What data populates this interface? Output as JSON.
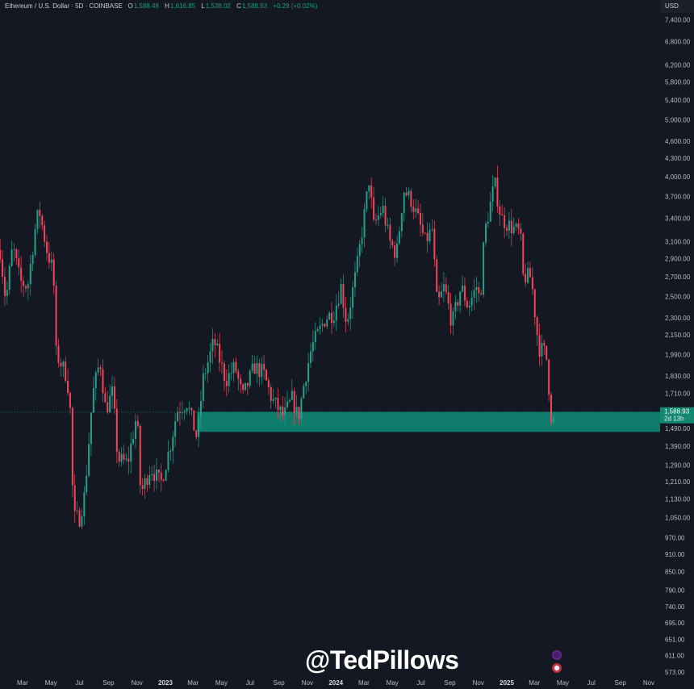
{
  "header": {
    "symbol": "Ethereum / U.S. Dollar · 5D · COINBASE",
    "o_label": "O",
    "o": "1,588.48",
    "h_label": "H",
    "h": "1,616.85",
    "l_label": "L",
    "l": "1,538.02",
    "c_label": "C",
    "c": "1,588.93",
    "change": "+0.29 (+0.02%)",
    "currency": "USD"
  },
  "watermark": "@TedPillows",
  "icons": [
    "lightning-icon",
    "us-flag-icon"
  ],
  "chart_data": {
    "type": "candlestick",
    "title": "Ethereum / U.S. Dollar · 5D · COINBASE",
    "y_scale": "log",
    "ylim": [
      560,
      7600
    ],
    "y_ticks": [
      "7,400.00",
      "6,800.00",
      "6,200.00",
      "5,800.00",
      "5,400.00",
      "5,000.00",
      "4,600.00",
      "4,300.00",
      "4,000.00",
      "3,700.00",
      "3,400.00",
      "3,100.00",
      "2,900.00",
      "2,700.00",
      "2,500.00",
      "2,300.00",
      "2,150.00",
      "1,990.00",
      "1,830.00",
      "1,710.00",
      "1,490.00",
      "1,390.00",
      "1,290.00",
      "1,210.00",
      "1,130.00",
      "1,050.00",
      "970.00",
      "910.00",
      "850.00",
      "790.00",
      "740.00",
      "695.00",
      "651.00",
      "611.00",
      "573.00"
    ],
    "x_ticks": [
      {
        "label": "Mar",
        "date": "2022-03-01"
      },
      {
        "label": "May",
        "date": "2022-05-01"
      },
      {
        "label": "Jul",
        "date": "2022-07-01"
      },
      {
        "label": "Sep",
        "date": "2022-09-01"
      },
      {
        "label": "Nov",
        "date": "2022-11-01"
      },
      {
        "label": "2023",
        "date": "2023-01-01",
        "bold": true
      },
      {
        "label": "Mar",
        "date": "2023-03-01"
      },
      {
        "label": "May",
        "date": "2023-05-01"
      },
      {
        "label": "Jul",
        "date": "2023-07-01"
      },
      {
        "label": "Sep",
        "date": "2023-09-01"
      },
      {
        "label": "Nov",
        "date": "2023-11-01"
      },
      {
        "label": "2024",
        "date": "2024-01-01",
        "bold": true
      },
      {
        "label": "Mar",
        "date": "2024-03-01"
      },
      {
        "label": "May",
        "date": "2024-05-01"
      },
      {
        "label": "Jul",
        "date": "2024-07-01"
      },
      {
        "label": "Sep",
        "date": "2024-09-01"
      },
      {
        "label": "Nov",
        "date": "2024-11-01"
      },
      {
        "label": "2025",
        "date": "2025-01-01",
        "bold": true
      },
      {
        "label": "Mar",
        "date": "2025-03-01"
      },
      {
        "label": "May",
        "date": "2025-05-01"
      },
      {
        "label": "Jul",
        "date": "2025-07-01"
      },
      {
        "label": "Sep",
        "date": "2025-09-01"
      },
      {
        "label": "Nov",
        "date": "2025-11-01"
      }
    ],
    "close_path": [
      [
        "2022-01-12",
        3000
      ],
      [
        "2022-01-24",
        2450
      ],
      [
        "2022-02-08",
        3050
      ],
      [
        "2022-02-24",
        2650
      ],
      [
        "2022-03-12",
        2600
      ],
      [
        "2022-03-30",
        3350
      ],
      [
        "2022-04-06",
        3500
      ],
      [
        "2022-04-22",
        3000
      ],
      [
        "2022-05-06",
        2750
      ],
      [
        "2022-05-12",
        2000
      ],
      [
        "2022-06-01",
        1850
      ],
      [
        "2022-06-10",
        1700
      ],
      [
        "2022-06-18",
        1050
      ],
      [
        "2022-07-01",
        1050
      ],
      [
        "2022-07-12",
        1150
      ],
      [
        "2022-07-29",
        1700
      ],
      [
        "2022-08-14",
        1950
      ],
      [
        "2022-08-26",
        1600
      ],
      [
        "2022-09-10",
        1720
      ],
      [
        "2022-09-21",
        1320
      ],
      [
        "2022-10-12",
        1300
      ],
      [
        "2022-11-01",
        1580
      ],
      [
        "2022-11-09",
        1150
      ],
      [
        "2022-11-30",
        1280
      ],
      [
        "2022-12-22",
        1200
      ],
      [
        "2023-01-12",
        1400
      ],
      [
        "2023-01-26",
        1600
      ],
      [
        "2023-02-16",
        1650
      ],
      [
        "2023-03-10",
        1430
      ],
      [
        "2023-03-22",
        1800
      ],
      [
        "2023-04-15",
        2100
      ],
      [
        "2023-05-10",
        1800
      ],
      [
        "2023-05-30",
        1900
      ],
      [
        "2023-06-15",
        1680
      ],
      [
        "2023-07-10",
        1900
      ],
      [
        "2023-07-30",
        1850
      ],
      [
        "2023-08-17",
        1670
      ],
      [
        "2023-09-11",
        1560
      ],
      [
        "2023-09-30",
        1680
      ],
      [
        "2023-10-12",
        1550
      ],
      [
        "2023-10-26",
        1800
      ],
      [
        "2023-11-10",
        2050
      ],
      [
        "2023-12-10",
        2300
      ],
      [
        "2023-12-28",
        2350
      ],
      [
        "2024-01-12",
        2600
      ],
      [
        "2024-01-24",
        2250
      ],
      [
        "2024-02-15",
        2800
      ],
      [
        "2024-03-01",
        3400
      ],
      [
        "2024-03-12",
        3950
      ],
      [
        "2024-03-22",
        3300
      ],
      [
        "2024-04-10",
        3550
      ],
      [
        "2024-04-25",
        3100
      ],
      [
        "2024-05-10",
        2950
      ],
      [
        "2024-05-25",
        3800
      ],
      [
        "2024-06-10",
        3650
      ],
      [
        "2024-06-24",
        3400
      ],
      [
        "2024-07-10",
        3100
      ],
      [
        "2024-07-25",
        3250
      ],
      [
        "2024-08-05",
        2400
      ],
      [
        "2024-08-20",
        2600
      ],
      [
        "2024-09-06",
        2250
      ],
      [
        "2024-09-25",
        2600
      ],
      [
        "2024-10-10",
        2400
      ],
      [
        "2024-10-28",
        2600
      ],
      [
        "2024-11-05",
        2450
      ],
      [
        "2024-11-14",
        3200
      ],
      [
        "2024-12-06",
        3900
      ],
      [
        "2024-12-20",
        3400
      ],
      [
        "2025-01-07",
        3300
      ],
      [
        "2025-01-30",
        3200
      ],
      [
        "2025-02-04",
        2700
      ],
      [
        "2025-02-22",
        2700
      ],
      [
        "2025-03-10",
        2050
      ],
      [
        "2025-03-26",
        2000
      ],
      [
        "2025-04-08",
        1500
      ],
      [
        "2025-04-15",
        1588.93
      ]
    ],
    "last_price": "1,588.93",
    "countdown": "2d 13h",
    "support_zone": {
      "from": "2023-03-10",
      "top": 1590,
      "bottom": 1470,
      "color": "#0f7c6b"
    },
    "colors": {
      "up": "#22a08a",
      "down": "#f0465a",
      "background": "#141823"
    },
    "grid": false
  }
}
